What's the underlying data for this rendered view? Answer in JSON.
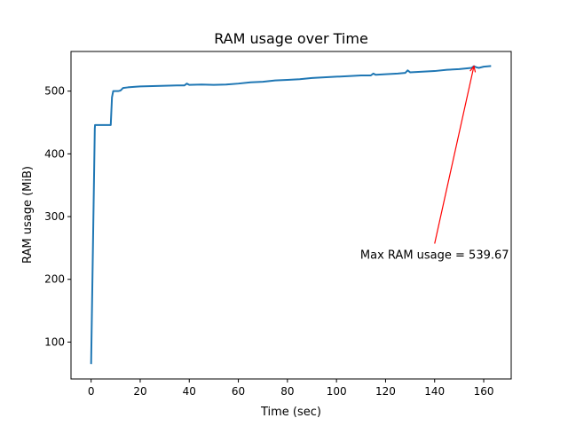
{
  "chart_data": {
    "type": "line",
    "title": "RAM usage over Time",
    "xlabel": "Time (sec)",
    "ylabel": "RAM usage (MiB)",
    "xlim": [
      -8.2,
      171.2
    ],
    "ylim": [
      41.2,
      563.2
    ],
    "xticks": [
      0,
      20,
      40,
      60,
      80,
      100,
      120,
      140,
      160
    ],
    "yticks": [
      100,
      200,
      300,
      400,
      500
    ],
    "grid": false,
    "line_color": "#1f77b4",
    "series": [
      {
        "x": [
          0,
          1.5,
          1.6,
          2,
          4,
          6,
          8,
          8.5,
          9,
          11,
          12,
          13,
          15,
          18,
          20,
          25,
          30,
          35,
          38,
          39,
          40,
          45,
          50,
          55,
          60,
          65,
          70,
          75,
          80,
          85,
          90,
          95,
          100,
          105,
          110,
          114,
          115,
          116,
          120,
          125,
          128,
          129,
          130,
          135,
          140,
          145,
          150,
          155,
          156,
          157,
          158,
          160,
          163
        ],
        "y": [
          65,
          440,
          446,
          446,
          446,
          446,
          446,
          490,
          500,
          500,
          501,
          505,
          506,
          507,
          507.5,
          508,
          508.5,
          509,
          509,
          512,
          510,
          510.5,
          510,
          510.5,
          512,
          514,
          515,
          517,
          518,
          519,
          521,
          522,
          523,
          524,
          525,
          525,
          528,
          526,
          527,
          528,
          529,
          533,
          530,
          531,
          532,
          534,
          535,
          537,
          539.67,
          538,
          537,
          539,
          540
        ]
      }
    ],
    "annotation": {
      "text": "Max RAM usage = 539.67",
      "color": "#ff0000",
      "target": [
        156,
        539.67
      ],
      "text_anchor": [
        140,
        240
      ]
    }
  }
}
